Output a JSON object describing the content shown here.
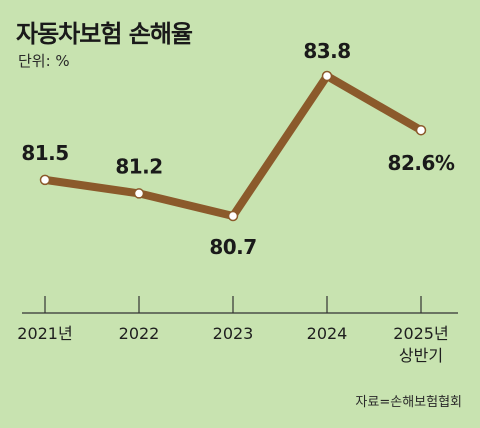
{
  "title": "자동차보험 손해율",
  "unit": "단위: %",
  "source": "자료=손해보험협회",
  "colors": {
    "background": "#c8e3b0",
    "line": "#8b5a2b",
    "marker_fill": "#ffffff",
    "axis": "#333333"
  },
  "chart_data": {
    "type": "line",
    "categories": [
      "2021년",
      "2022",
      "2023",
      "2024",
      "2025년\n상반기"
    ],
    "values": [
      81.5,
      81.2,
      80.7,
      83.8,
      82.6
    ],
    "value_labels": [
      "81.5",
      "81.2",
      "80.7",
      "83.8",
      "82.6%"
    ],
    "title": "자동차보험 손해율",
    "ylabel": "단위: %",
    "ylim": [
      80.0,
      84.5
    ],
    "grid": false,
    "legend": "none"
  }
}
